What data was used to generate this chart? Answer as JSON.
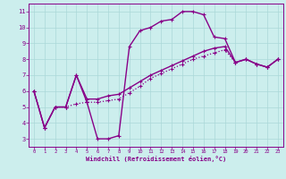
{
  "xlabel": "Windchill (Refroidissement éolien,°C)",
  "bg_color": "#cceeed",
  "grid_color": "#aad8d8",
  "line_color": "#880088",
  "xlim_min": -0.5,
  "xlim_max": 23.5,
  "ylim_min": 2.5,
  "ylim_max": 11.5,
  "xticks": [
    0,
    1,
    2,
    3,
    4,
    5,
    6,
    7,
    8,
    9,
    10,
    11,
    12,
    13,
    14,
    15,
    16,
    17,
    18,
    19,
    20,
    21,
    22,
    23
  ],
  "yticks": [
    3,
    4,
    5,
    6,
    7,
    8,
    9,
    10,
    11
  ],
  "lines": [
    {
      "x": [
        0,
        1,
        2,
        3,
        4,
        5,
        6,
        7,
        8,
        9,
        10,
        11,
        12,
        13,
        14,
        15,
        16,
        17,
        18,
        19,
        20,
        21,
        22,
        23
      ],
      "y": [
        6.0,
        3.7,
        5.0,
        5.0,
        7.0,
        5.3,
        3.0,
        3.0,
        3.2,
        8.8,
        9.8,
        10.0,
        10.4,
        10.5,
        11.0,
        11.0,
        10.8,
        9.4,
        9.3,
        7.8,
        8.0,
        7.7,
        7.5,
        8.0
      ],
      "style": "-",
      "lw": 1.0
    },
    {
      "x": [
        0,
        1,
        2,
        3,
        4,
        5,
        6,
        7,
        8,
        9,
        10,
        11,
        12,
        13,
        14,
        15,
        16,
        17,
        18,
        19,
        20,
        21,
        22,
        23
      ],
      "y": [
        6.0,
        3.7,
        5.0,
        5.0,
        7.0,
        5.5,
        5.5,
        5.7,
        5.8,
        6.2,
        6.6,
        7.0,
        7.3,
        7.6,
        7.9,
        8.2,
        8.5,
        8.7,
        8.8,
        7.8,
        8.0,
        7.7,
        7.5,
        8.0
      ],
      "style": "-",
      "lw": 1.0
    },
    {
      "x": [
        0,
        1,
        2,
        3,
        4,
        5,
        6,
        7,
        8,
        9,
        10,
        11,
        12,
        13,
        14,
        15,
        16,
        17,
        18,
        19,
        20,
        21,
        22,
        23
      ],
      "y": [
        6.0,
        3.7,
        5.0,
        5.0,
        5.2,
        5.3,
        5.3,
        5.4,
        5.5,
        5.9,
        6.3,
        6.8,
        7.1,
        7.4,
        7.7,
        8.0,
        8.2,
        8.4,
        8.6,
        7.8,
        8.0,
        7.7,
        7.5,
        8.0
      ],
      "style": ":",
      "lw": 0.9
    }
  ]
}
